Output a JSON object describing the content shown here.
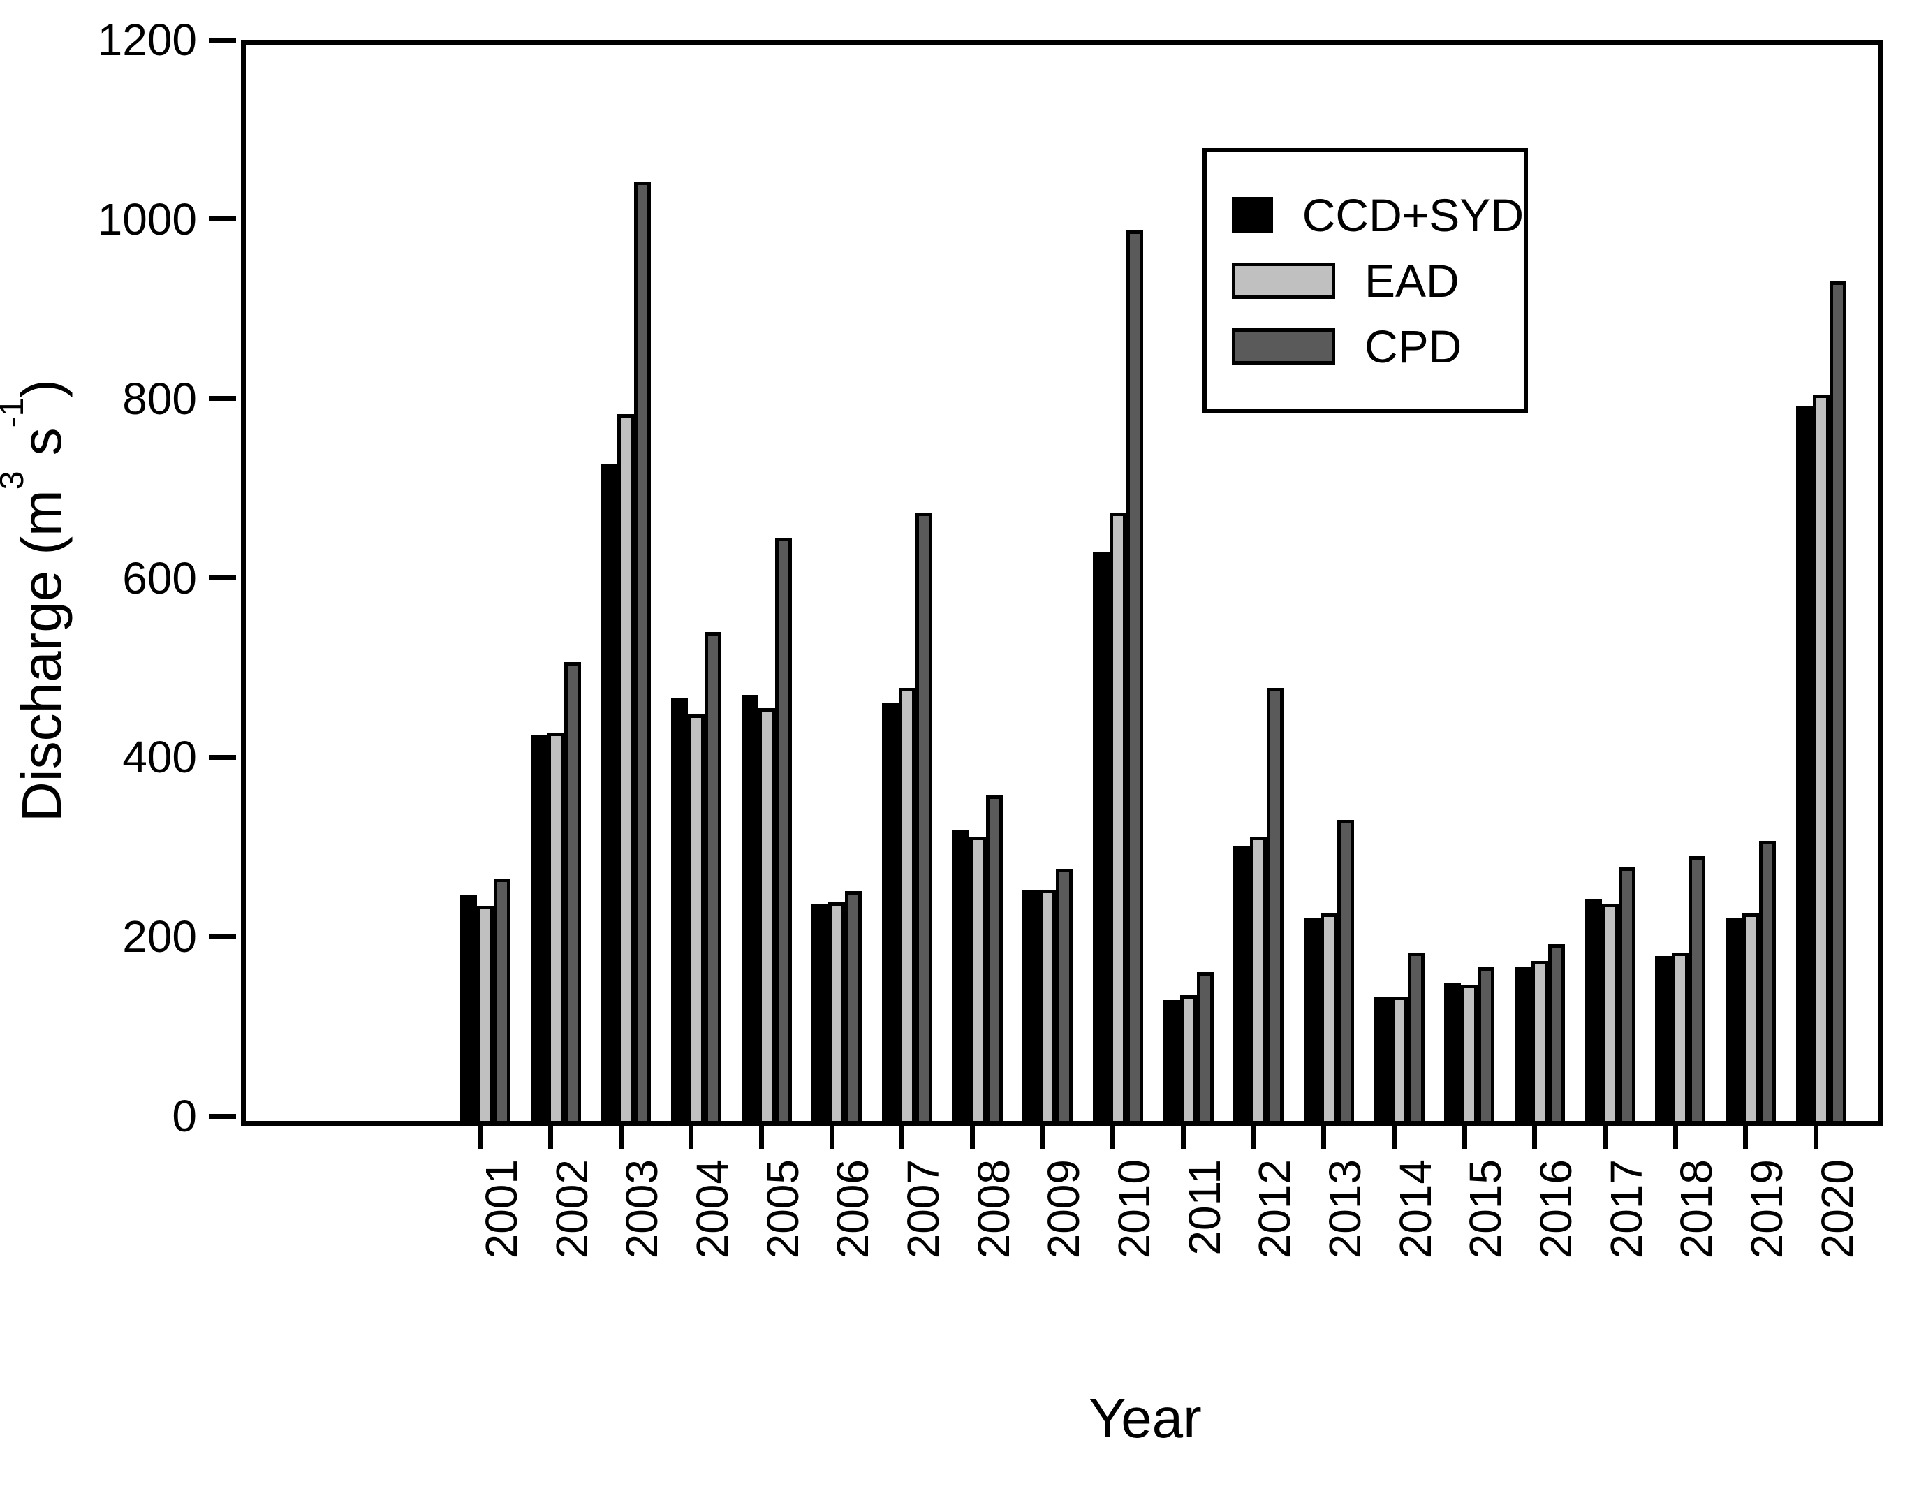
{
  "chart_data": {
    "type": "bar",
    "title": "",
    "xlabel": "Year",
    "ylabel": "Discharge (m3 s-1)",
    "ylabel_parts": [
      {
        "t": "Discharge (m",
        "sup": false
      },
      {
        "t": "3",
        "sup": true
      },
      {
        "t": " s",
        "sup": false
      },
      {
        "t": "-1",
        "sup": true
      },
      {
        "t": ")",
        "sup": false
      }
    ],
    "categories": [
      "2001",
      "2002",
      "2003",
      "2004",
      "2005",
      "2006",
      "2007",
      "2008",
      "2009",
      "2010",
      "2011",
      "2012",
      "2013",
      "2014",
      "2015",
      "2016",
      "2017",
      "2018",
      "2019",
      "2020"
    ],
    "series": [
      {
        "name": "CCD+SYD",
        "color": "#000000",
        "values": [
          252,
          430,
          733,
          472,
          475,
          242,
          466,
          324,
          258,
          635,
          135,
          306,
          227,
          138,
          154,
          172,
          247,
          184,
          227,
          797
        ]
      },
      {
        "name": "EAD",
        "color": "#c0c0c0",
        "values": [
          240,
          433,
          788,
          453,
          460,
          244,
          483,
          317,
          258,
          678,
          140,
          317,
          231,
          139,
          152,
          178,
          242,
          188,
          231,
          810
        ]
      },
      {
        "name": "CPD",
        "color": "#5a5a5a",
        "values": [
          270,
          512,
          1047,
          545,
          650,
          256,
          678,
          363,
          281,
          993,
          166,
          483,
          336,
          188,
          171,
          197,
          283,
          295,
          312,
          936
        ]
      }
    ],
    "ylim": [
      0,
      1200
    ],
    "yticks": [
      0,
      200,
      400,
      600,
      800,
      1000,
      1200
    ],
    "grid": false,
    "legend_position": "upper-right",
    "bar_outline_color": "#000000",
    "background_color": "#ffffff"
  }
}
